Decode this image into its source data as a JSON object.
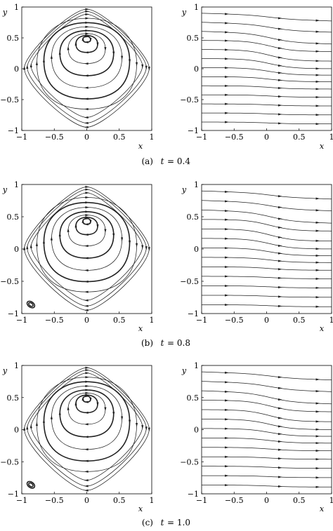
{
  "captions": [
    {
      "label": "(a)",
      "var": "t",
      "value": "= 0.4"
    },
    {
      "label": "(b)",
      "var": "t",
      "value": "= 0.8"
    },
    {
      "label": "(c)",
      "var": "t",
      "value": "= 1.0"
    }
  ],
  "axes": {
    "xlabel": "x",
    "ylabel": "y",
    "left_xticks": [
      "−1",
      "−0.5",
      "0",
      "0.5",
      "1"
    ],
    "left_yticks": [
      "1",
      "0.5",
      "0",
      "−0.5",
      "−1"
    ],
    "right_xticks": [
      "−1",
      "−0.5",
      "0",
      "0.5",
      "1"
    ],
    "right_yticks": [
      "1",
      "0.5",
      "0",
      "−0.5",
      "−1"
    ]
  },
  "panels": [
    {
      "t": 0.4,
      "corner_eddy": false,
      "center": [
        0.0,
        0.52
      ]
    },
    {
      "t": 0.8,
      "corner_eddy": true,
      "center": [
        0.0,
        0.47
      ]
    },
    {
      "t": 1.0,
      "corner_eddy": true,
      "center": [
        0.0,
        0.52
      ]
    }
  ]
}
